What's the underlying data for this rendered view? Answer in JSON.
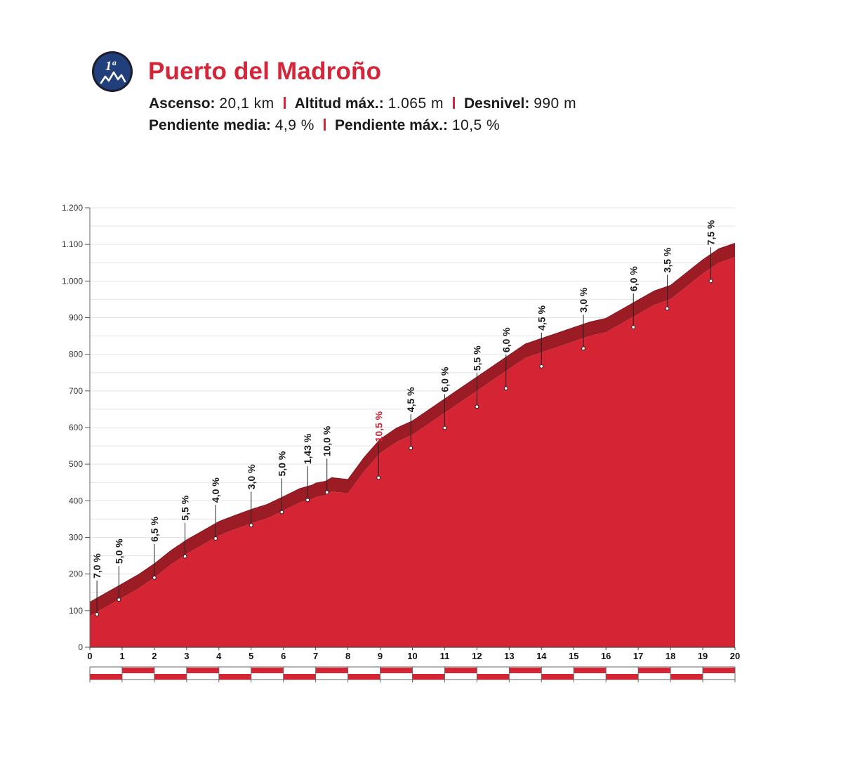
{
  "header": {
    "category": "1ª",
    "title": "Puerto del Madroño",
    "stats_row1": [
      {
        "label": "Ascenso:",
        "value": "20,1 km"
      },
      {
        "label": "Altitud máx.:",
        "value": "1.065 m"
      },
      {
        "label": "Desnivel:",
        "value": "990 m"
      }
    ],
    "stats_row2": [
      {
        "label": "Pendiente media:",
        "value": "4,9 %"
      },
      {
        "label": "Pendiente máx.:",
        "value": "10,5 %"
      }
    ]
  },
  "colors": {
    "profile": "#d52433",
    "profile_edge": "#9c1c26",
    "accent_text": "#d3263a",
    "badge": "#213f7a",
    "grid": "#e4e4e4"
  },
  "chart_data": {
    "type": "area",
    "xlabel": "",
    "ylabel": "",
    "xlim": [
      0,
      20
    ],
    "ylim": [
      0,
      1200
    ],
    "xticks": [
      0,
      1,
      2,
      3,
      4,
      5,
      6,
      7,
      8,
      9,
      10,
      11,
      12,
      13,
      14,
      15,
      16,
      17,
      18,
      19,
      20
    ],
    "yticks": [
      0,
      100,
      200,
      300,
      400,
      500,
      600,
      700,
      800,
      900,
      1000,
      1100,
      1200
    ],
    "ytick_labels": [
      "0",
      "100",
      "200",
      "300",
      "400",
      "500",
      "600",
      "700",
      "800",
      "900",
      "1.000",
      "1.100",
      "1.200"
    ],
    "grid": true,
    "profile": {
      "x": [
        0,
        0.5,
        1,
        1.5,
        2,
        2.5,
        3,
        3.5,
        4,
        4.5,
        5,
        5.5,
        6,
        6.5,
        6.9,
        7,
        7.3,
        7.5,
        8,
        8.5,
        9,
        9.5,
        10,
        10.5,
        11,
        11.5,
        12,
        12.5,
        13,
        13.5,
        14,
        14.5,
        15,
        15.5,
        16,
        16.5,
        17,
        17.5,
        18,
        18.5,
        19,
        19.5,
        20
      ],
      "y": [
        85,
        110,
        135,
        160,
        190,
        225,
        255,
        280,
        305,
        322,
        338,
        352,
        373,
        395,
        405,
        410,
        415,
        425,
        420,
        480,
        530,
        560,
        580,
        610,
        640,
        670,
        700,
        730,
        760,
        790,
        805,
        820,
        835,
        850,
        860,
        885,
        910,
        935,
        950,
        985,
        1020,
        1050,
        1065
      ]
    },
    "gradient_labels": [
      {
        "x": 0.22,
        "y": 90,
        "label": "7,0 %",
        "highlight": false
      },
      {
        "x": 0.9,
        "y": 130,
        "label": "5,0 %",
        "highlight": false
      },
      {
        "x": 2.0,
        "y": 190,
        "label": "6,5 %",
        "highlight": false
      },
      {
        "x": 2.95,
        "y": 248,
        "label": "5,5 %",
        "highlight": false
      },
      {
        "x": 3.9,
        "y": 297,
        "label": "4,0 %",
        "highlight": false
      },
      {
        "x": 5.0,
        "y": 333,
        "label": "3,0 %",
        "highlight": false
      },
      {
        "x": 5.95,
        "y": 369,
        "label": "5,0 %",
        "highlight": false
      },
      {
        "x": 6.75,
        "y": 402,
        "label": "1,43 %",
        "highlight": false
      },
      {
        "x": 7.35,
        "y": 423,
        "label": "10,0 %",
        "highlight": false
      },
      {
        "x": 8.95,
        "y": 463,
        "label": "10,5 %",
        "highlight": true
      },
      {
        "x": 9.95,
        "y": 544,
        "label": "4,5 %",
        "highlight": false
      },
      {
        "x": 11.0,
        "y": 599,
        "label": "6,0 %",
        "highlight": false
      },
      {
        "x": 12.0,
        "y": 657,
        "label": "5,5 %",
        "highlight": false
      },
      {
        "x": 12.9,
        "y": 707,
        "label": "6,0 %",
        "highlight": false
      },
      {
        "x": 14.0,
        "y": 767,
        "label": "4,5 %",
        "highlight": false
      },
      {
        "x": 15.3,
        "y": 816,
        "label": "3,0 %",
        "highlight": false
      },
      {
        "x": 16.85,
        "y": 874,
        "label": "6,0 %",
        "highlight": false
      },
      {
        "x": 17.9,
        "y": 925,
        "label": "3,5 %",
        "highlight": false
      },
      {
        "x": 19.25,
        "y": 1000,
        "label": "7,5 %",
        "highlight": false
      }
    ]
  }
}
